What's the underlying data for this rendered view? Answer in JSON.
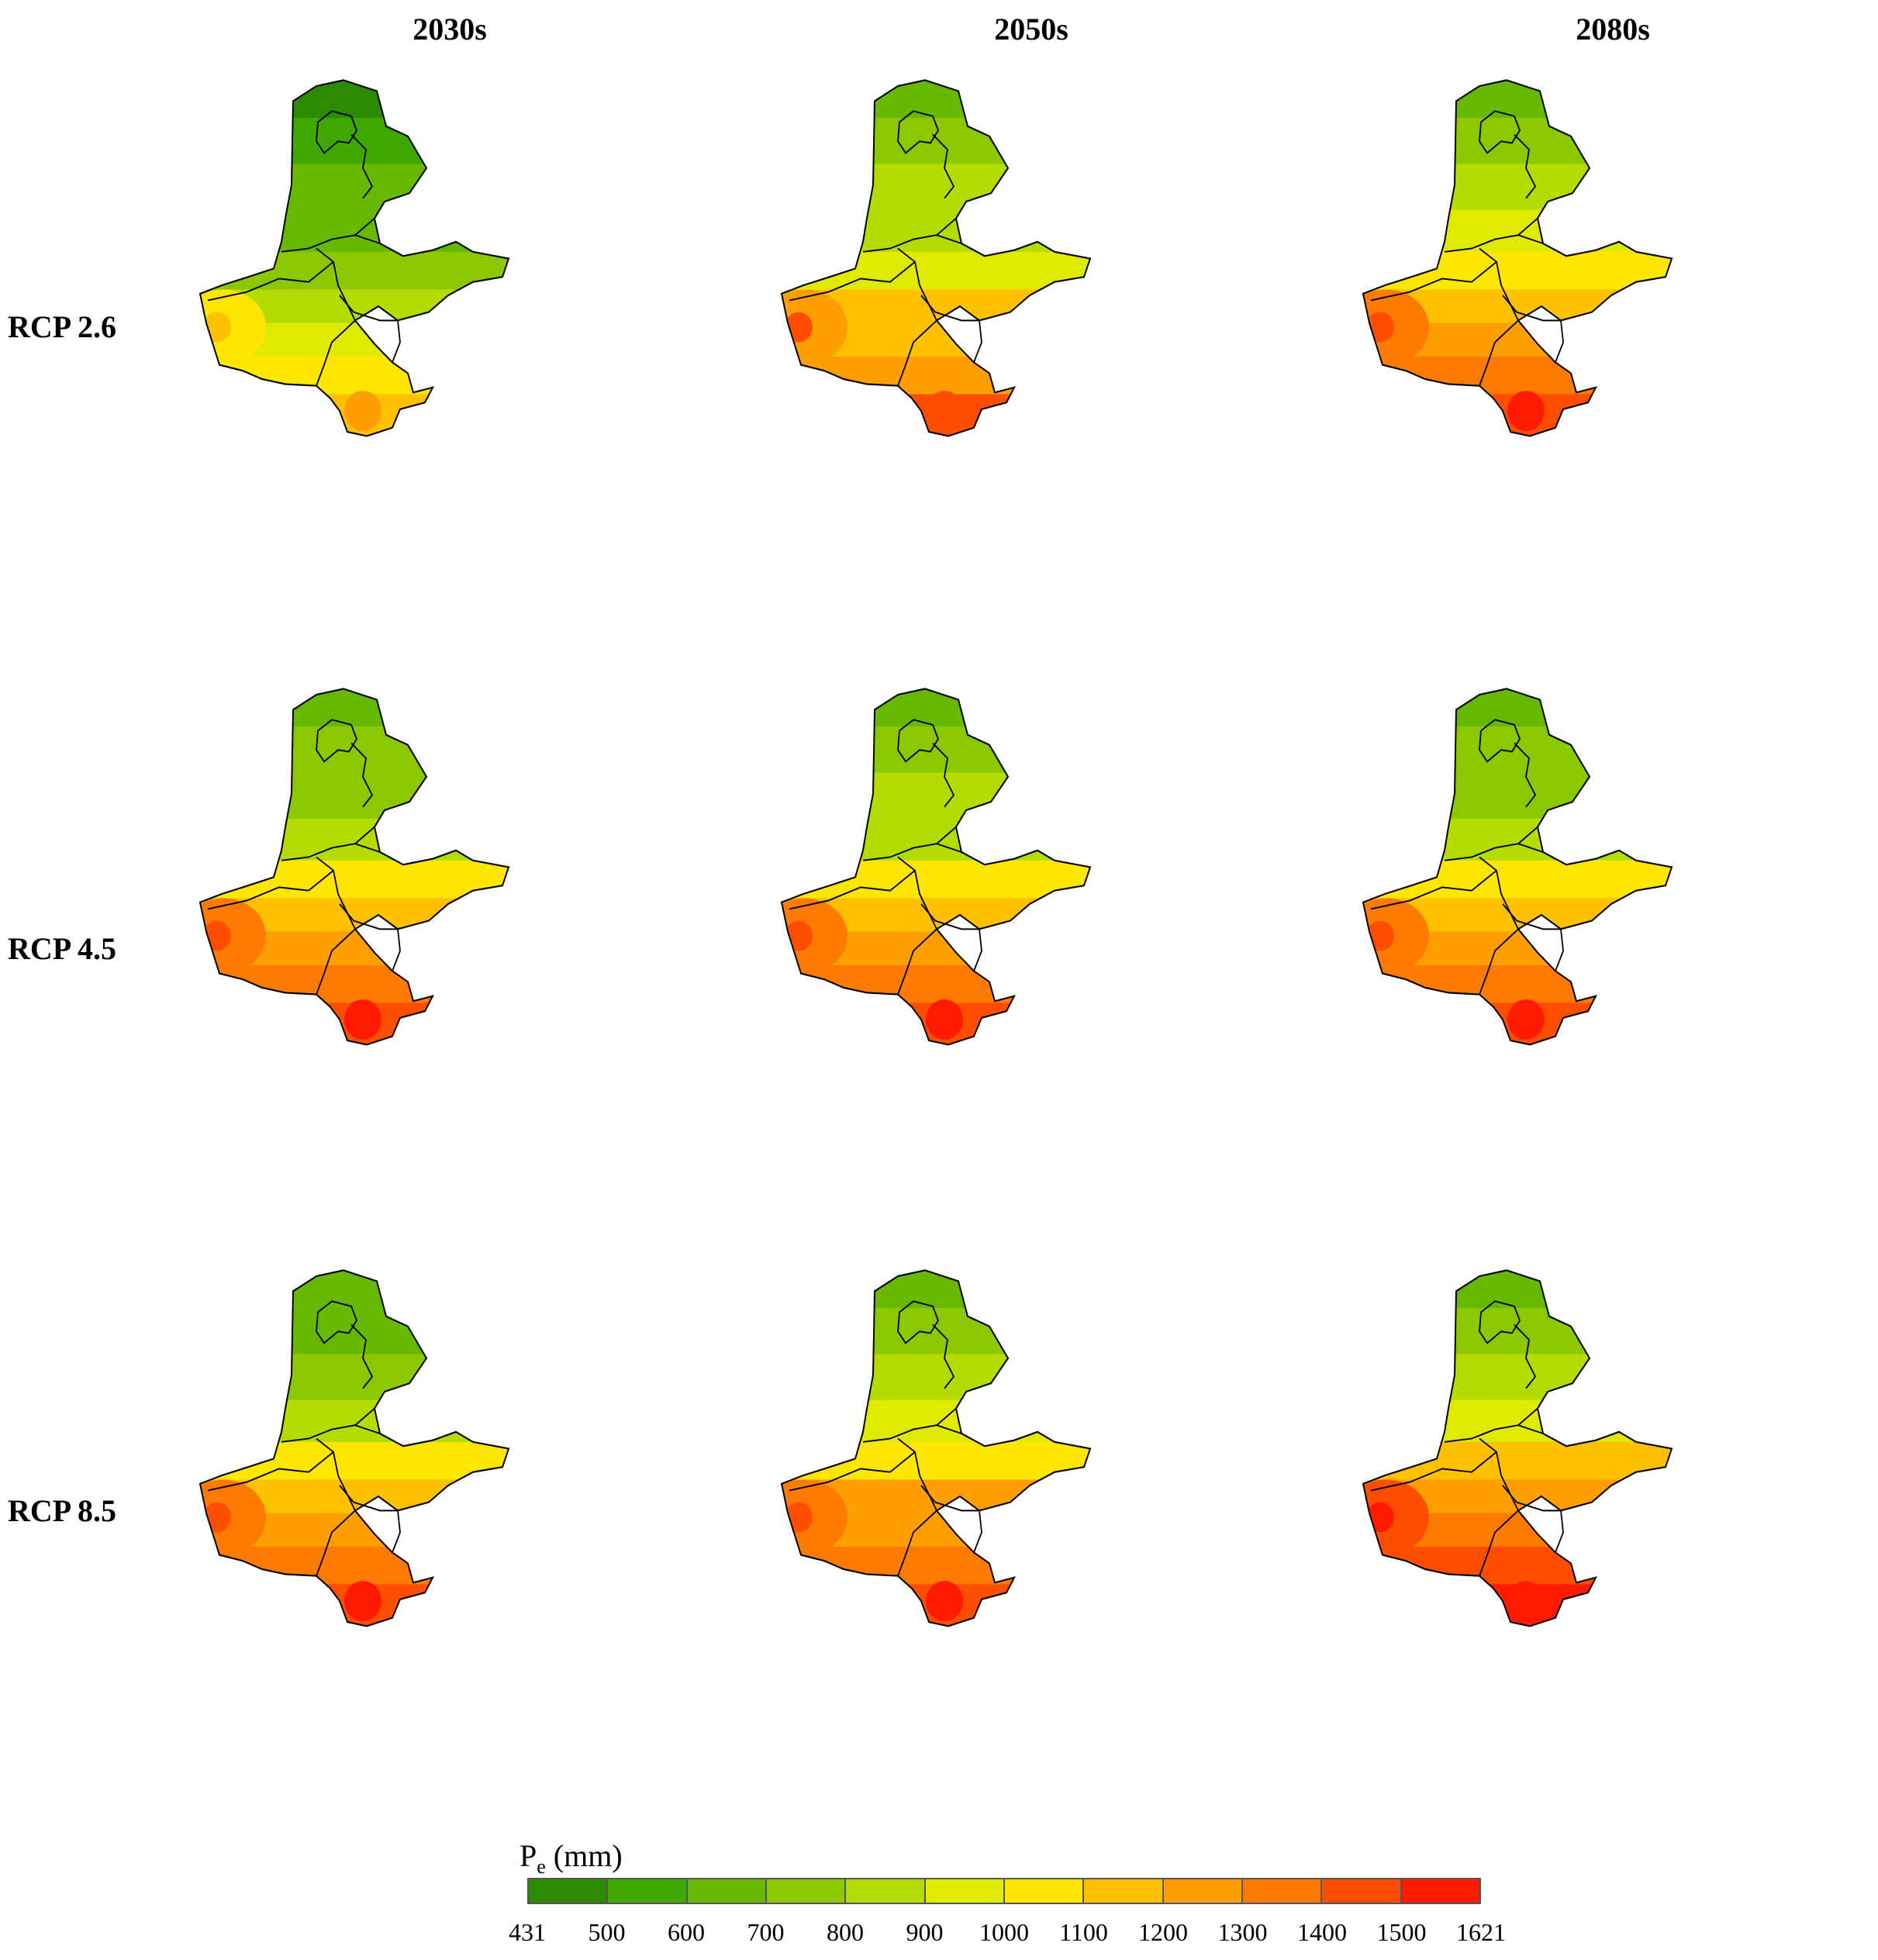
{
  "columns": [
    "2030s",
    "2050s",
    "2080s"
  ],
  "rows": [
    "RCP 2.6",
    "RCP 4.5",
    "RCP 8.5"
  ],
  "legend": {
    "title_main": "P",
    "title_sub": "e",
    "title_unit": " (mm)",
    "ticks": [
      "431",
      "500",
      "600",
      "700",
      "800",
      "900",
      "1000",
      "1100",
      "1200",
      "1300",
      "1400",
      "1500",
      "1621"
    ],
    "colors": [
      "#2e8b00",
      "#3ea800",
      "#66b800",
      "#8cc800",
      "#b4dc00",
      "#e0ea00",
      "#ffe600",
      "#ffc000",
      "#ff9e00",
      "#ff7a00",
      "#ff4e00",
      "#ff1a00"
    ]
  },
  "panels": [
    {
      "scenario": "RCP 2.6",
      "period": "2030s",
      "zone_values": [
        450,
        520,
        600,
        680,
        760,
        850,
        930,
        1040,
        1120
      ]
    },
    {
      "scenario": "RCP 2.6",
      "period": "2050s",
      "zone_values": [
        650,
        720,
        800,
        880,
        980,
        1100,
        1180,
        1280,
        1400
      ]
    },
    {
      "scenario": "RCP 2.6",
      "period": "2080s",
      "zone_values": [
        680,
        740,
        820,
        920,
        1050,
        1150,
        1250,
        1350,
        1480
      ]
    },
    {
      "scenario": "RCP 4.5",
      "period": "2030s",
      "zone_values": [
        640,
        700,
        780,
        880,
        1050,
        1180,
        1260,
        1360,
        1450
      ]
    },
    {
      "scenario": "RCP 4.5",
      "period": "2050s",
      "zone_values": [
        650,
        710,
        800,
        890,
        1060,
        1190,
        1270,
        1350,
        1420
      ]
    },
    {
      "scenario": "RCP 4.5",
      "period": "2080s",
      "zone_values": [
        640,
        700,
        790,
        880,
        1040,
        1180,
        1280,
        1360,
        1460
      ]
    },
    {
      "scenario": "RCP 8.5",
      "period": "2030s",
      "zone_values": [
        620,
        690,
        760,
        860,
        1000,
        1120,
        1230,
        1330,
        1450
      ]
    },
    {
      "scenario": "RCP 8.5",
      "period": "2050s",
      "zone_values": [
        660,
        720,
        810,
        900,
        1080,
        1200,
        1280,
        1360,
        1440
      ]
    },
    {
      "scenario": "RCP 8.5",
      "period": "2080s",
      "zone_values": [
        680,
        750,
        840,
        960,
        1120,
        1260,
        1360,
        1460,
        1560
      ]
    }
  ]
}
